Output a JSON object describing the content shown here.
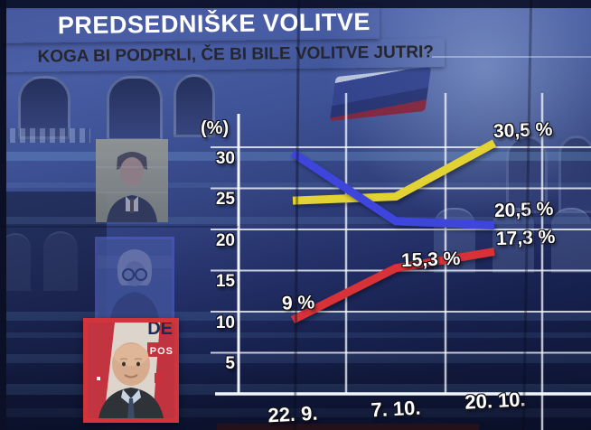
{
  "header": {
    "title": "PREDSEDNIŠKE VOLITVE",
    "subtitle": "KOGA BI PODPRLI, ČE BI BILE VOLITVE JUTRI?",
    "title_bg_color": "#e13c40",
    "subtitle_bg_color": "#efece9"
  },
  "candidates": [
    {
      "id": "candidate-photo-1",
      "appearance": "faded yellow-tinted portrait of man in dark suit"
    },
    {
      "id": "candidate-photo-2",
      "appearance": "faded blue-tinted portrait of woman with glasses"
    },
    {
      "id": "candidate-photo-3",
      "appearance": "highlighted portrait with red frame, bald man",
      "backdrop_fragments": [
        "DE",
        "POS"
      ]
    }
  ],
  "chart_data": {
    "type": "line",
    "title": "",
    "ylabel": "(%)",
    "yticks": [
      "30",
      "25",
      "20",
      "15",
      "10",
      "5"
    ],
    "ylim": [
      0,
      34
    ],
    "x_categories": [
      "22. 9.",
      "7. 10.",
      "20. 10."
    ],
    "grid": true,
    "legend": "none",
    "series": [
      {
        "name": "yellow-candidate",
        "color": "#e2d233",
        "values": [
          23.5,
          24.0,
          30.5
        ],
        "end_label": "30,5 %"
      },
      {
        "name": "blue-candidate",
        "color": "#3e45dd",
        "values": [
          29.3,
          21.0,
          20.5
        ],
        "end_label": "20,5 %"
      },
      {
        "name": "red-candidate",
        "color": "#d93138",
        "values": [
          9.0,
          15.3,
          17.3
        ],
        "end_label": "17,3 %",
        "point_labels": [
          "9 %",
          "15,3 %"
        ]
      }
    ]
  }
}
